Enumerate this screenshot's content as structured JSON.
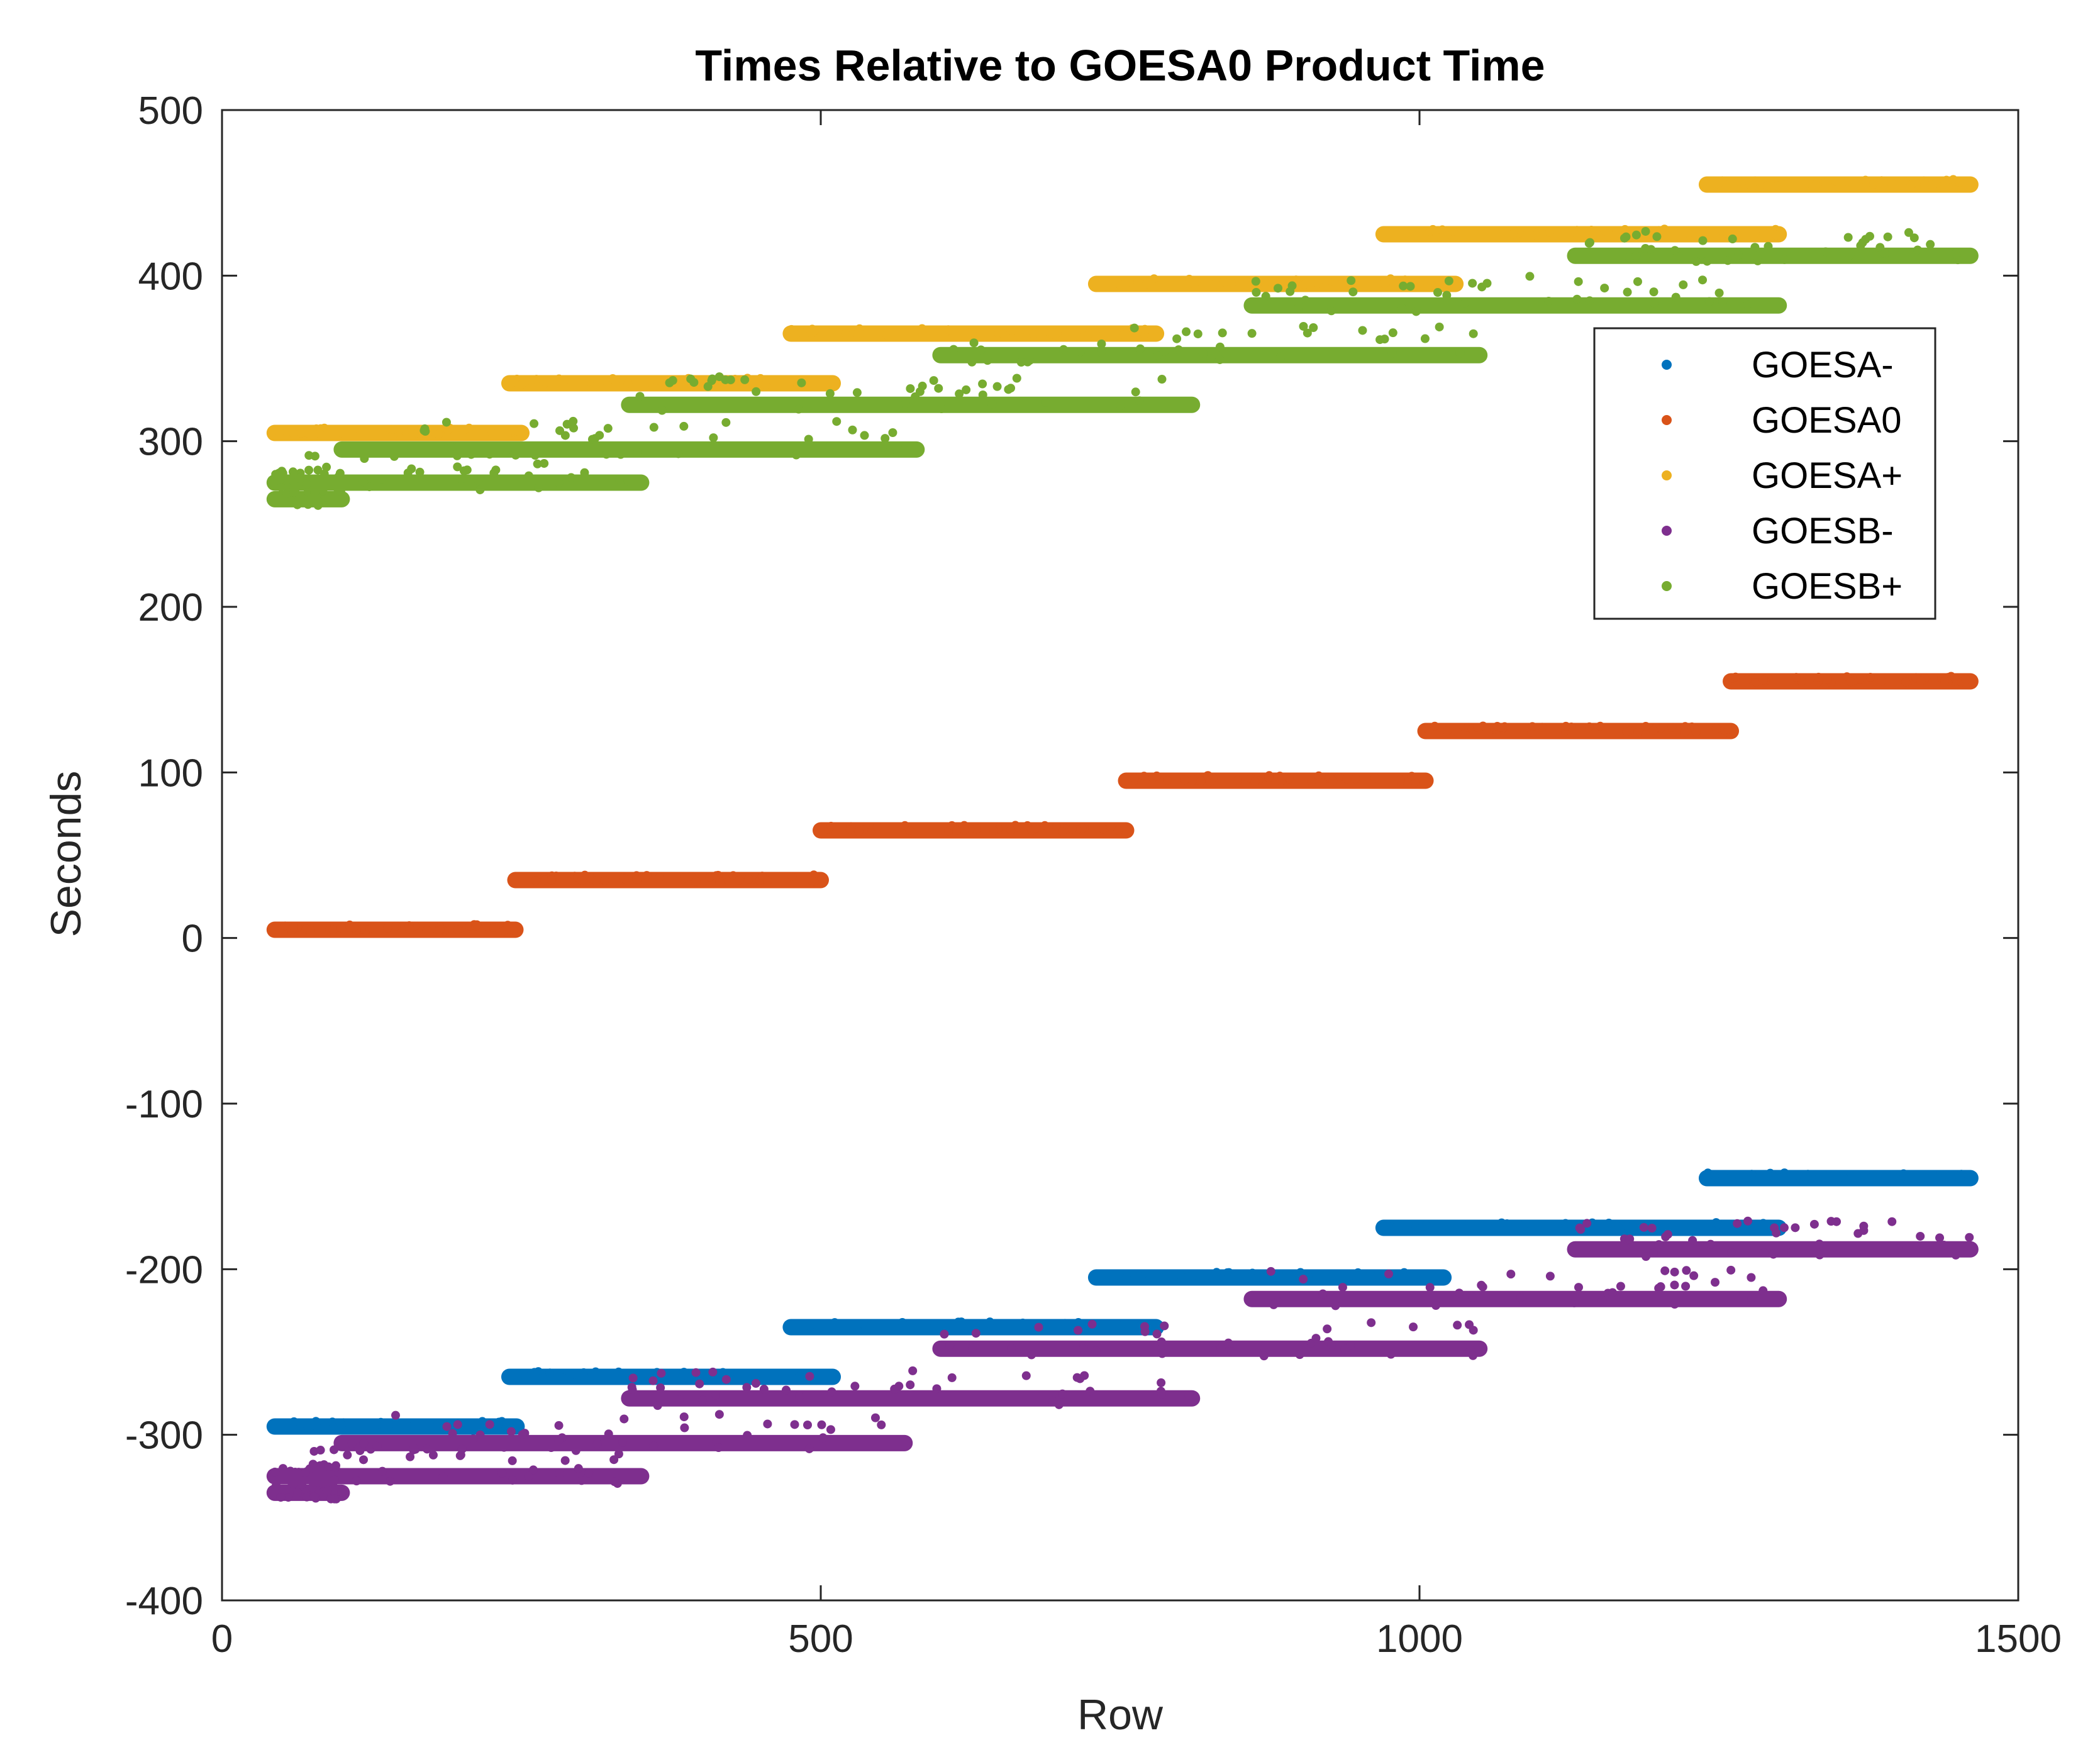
{
  "chart_data": {
    "type": "scatter",
    "title": "Times Relative to GOESA0 Product Time",
    "xlabel": "Row",
    "ylabel": "Seconds",
    "xlim": [
      0,
      1500
    ],
    "ylim": [
      -400,
      500
    ],
    "xticks": [
      0,
      500,
      1000,
      1500
    ],
    "yticks": [
      -400,
      -300,
      -200,
      -100,
      0,
      100,
      200,
      300,
      400,
      500
    ],
    "grid": false,
    "legend_position": "top-right",
    "series": [
      {
        "name": "GOESA-",
        "color": "#0072BD",
        "segments": [
          {
            "x": [
              44,
              246
            ],
            "y": -295
          },
          {
            "x": [
              240,
              510
            ],
            "y": -265
          },
          {
            "x": [
              475,
              780
            ],
            "y": -235
          },
          {
            "x": [
              730,
              1020
            ],
            "y": -205
          },
          {
            "x": [
              970,
              1300
            ],
            "y": -175
          },
          {
            "x": [
              1240,
              1460
            ],
            "y": -145
          }
        ]
      },
      {
        "name": "GOESA0",
        "color": "#D95319",
        "segments": [
          {
            "x": [
              44,
              245
            ],
            "y": 5
          },
          {
            "x": [
              245,
              500
            ],
            "y": 35
          },
          {
            "x": [
              500,
              755
            ],
            "y": 65
          },
          {
            "x": [
              755,
              1005
            ],
            "y": 95
          },
          {
            "x": [
              1005,
              1260
            ],
            "y": 125
          },
          {
            "x": [
              1260,
              1460
            ],
            "y": 155
          }
        ]
      },
      {
        "name": "GOESA+",
        "color": "#EDB120",
        "segments": [
          {
            "x": [
              44,
              250
            ],
            "y": 305
          },
          {
            "x": [
              240,
              510
            ],
            "y": 335
          },
          {
            "x": [
              475,
              780
            ],
            "y": 365
          },
          {
            "x": [
              730,
              1030
            ],
            "y": 395
          },
          {
            "x": [
              970,
              1300
            ],
            "y": 425
          },
          {
            "x": [
              1240,
              1460
            ],
            "y": 455
          }
        ]
      },
      {
        "name": "GOESB-",
        "color": "#7E2F8E",
        "segments": [
          {
            "x": [
              44,
              100
            ],
            "y": -335
          },
          {
            "x": [
              44,
              350
            ],
            "y": -325
          },
          {
            "x": [
              100,
              570
            ],
            "y": -305
          },
          {
            "x": [
              340,
              810
            ],
            "y": -278
          },
          {
            "x": [
              600,
              1050
            ],
            "y": -248
          },
          {
            "x": [
              860,
              1300
            ],
            "y": -218
          },
          {
            "x": [
              1130,
              1460
            ],
            "y": -188
          }
        ]
      },
      {
        "name": "GOESB+",
        "color": "#77AC30",
        "segments": [
          {
            "x": [
              44,
              100
            ],
            "y": 265
          },
          {
            "x": [
              44,
              350
            ],
            "y": 275
          },
          {
            "x": [
              100,
              580
            ],
            "y": 295
          },
          {
            "x": [
              340,
              810
            ],
            "y": 322
          },
          {
            "x": [
              600,
              1050
            ],
            "y": 352
          },
          {
            "x": [
              860,
              1300
            ],
            "y": 382
          },
          {
            "x": [
              1130,
              1460
            ],
            "y": 412
          }
        ]
      }
    ]
  }
}
